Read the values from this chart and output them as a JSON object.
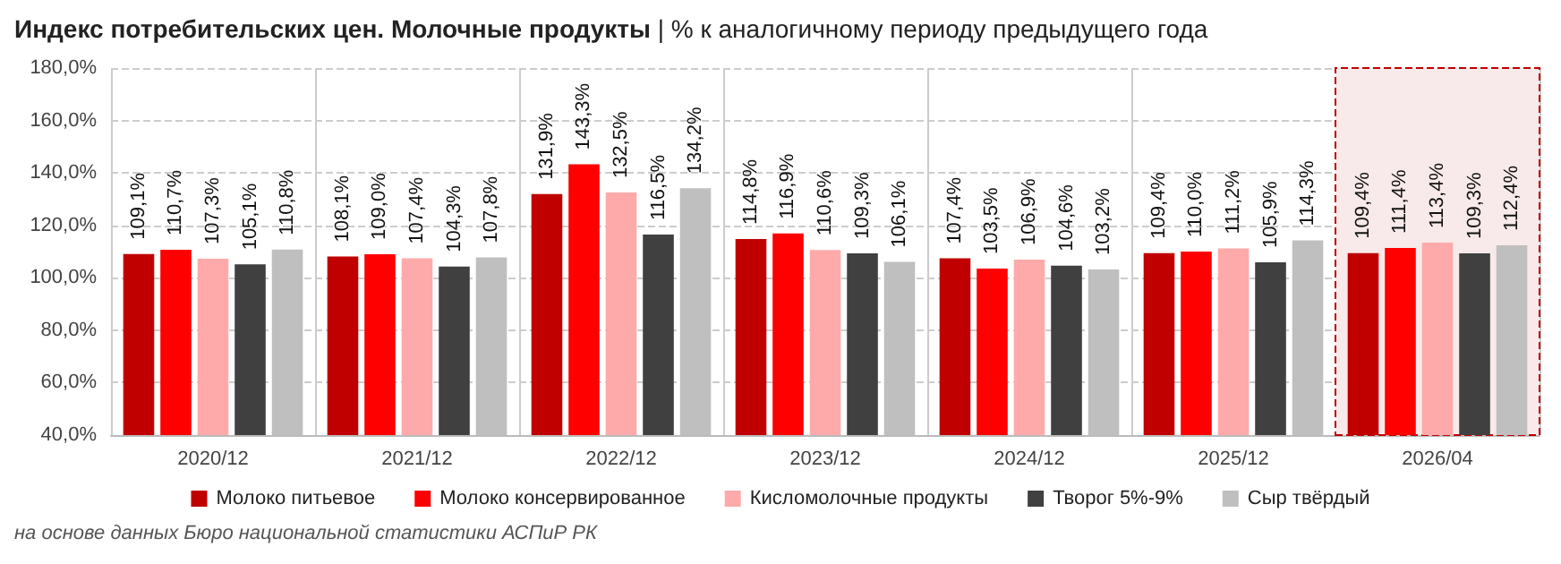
{
  "chart_data": {
    "type": "bar",
    "title": "Индекс потребительских цен. Молочные продукты",
    "subtitle": "| % к аналогичному периоду предыдущего года",
    "categories": [
      "2020/12",
      "2021/12",
      "2022/12",
      "2023/12",
      "2024/12",
      "2025/12",
      "2026/04"
    ],
    "series": [
      {
        "name": "Молоко питьевое",
        "color": "#c00000",
        "values": [
          109.1,
          108.1,
          131.9,
          114.8,
          107.4,
          109.4,
          109.4
        ],
        "value_labels": [
          "109,1%",
          "108,1%",
          "131,9%",
          "114,8%",
          "107,4%",
          "109,4%",
          "109,4%"
        ]
      },
      {
        "name": "Молоко консервированное",
        "color": "#ff0000",
        "values": [
          110.7,
          109.0,
          143.3,
          116.9,
          103.5,
          110.0,
          111.4
        ],
        "value_labels": [
          "110,7%",
          "109,0%",
          "143,3%",
          "116,9%",
          "103,5%",
          "110,0%",
          "111,4%"
        ]
      },
      {
        "name": "Кисломолочные продукты",
        "color": "#ffaaaa",
        "values": [
          107.3,
          107.4,
          132.5,
          110.6,
          106.9,
          111.2,
          113.4
        ],
        "value_labels": [
          "107,3%",
          "107,4%",
          "132,5%",
          "110,6%",
          "106,9%",
          "111,2%",
          "113,4%"
        ]
      },
      {
        "name": "Творог 5%-9%",
        "color": "#404040",
        "values": [
          105.1,
          104.3,
          116.5,
          109.3,
          104.6,
          105.9,
          109.3
        ],
        "value_labels": [
          "105,1%",
          "104,3%",
          "116,5%",
          "109,3%",
          "104,6%",
          "105,9%",
          "109,3%"
        ]
      },
      {
        "name": "Сыр твёрдый",
        "color": "#bfbfbf",
        "values": [
          110.8,
          107.8,
          134.2,
          106.1,
          103.2,
          114.3,
          112.4
        ],
        "value_labels": [
          "110,8%",
          "107,8%",
          "134,2%",
          "106,1%",
          "103,2%",
          "114,3%",
          "112,4%"
        ]
      }
    ],
    "ylim": [
      40,
      180
    ],
    "yticks": [
      {
        "value": 40,
        "label": "40,0%"
      },
      {
        "value": 60,
        "label": "60,0%"
      },
      {
        "value": 80,
        "label": "80,0%"
      },
      {
        "value": 100,
        "label": "100,0%"
      },
      {
        "value": 120,
        "label": "120,0%"
      },
      {
        "value": 140,
        "label": "140,0%"
      },
      {
        "value": 160,
        "label": "160,0%"
      },
      {
        "value": 180,
        "label": "180,0%"
      }
    ],
    "bands": [
      {
        "axis": "x",
        "from": "2026/04",
        "to": "2026/04",
        "color": "#f8eaea"
      }
    ],
    "grid": true,
    "legend": "bottom",
    "annotations": [
      "на основе данных Бюро национальной статистики АСПиР РК"
    ]
  }
}
